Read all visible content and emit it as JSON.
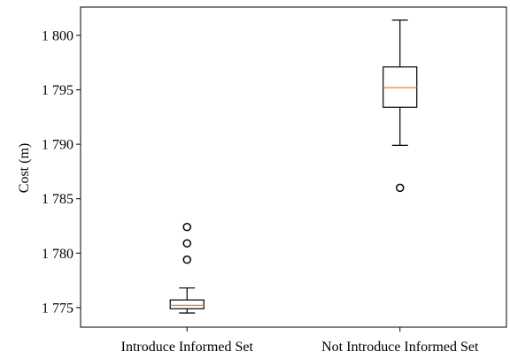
{
  "chart_data": {
    "type": "box",
    "title": "",
    "xlabel": "",
    "ylabel": "Cost  (m)",
    "ylim": [
      1773.2,
      1802.6
    ],
    "yticks": [
      1775,
      1780,
      1785,
      1790,
      1795,
      1800
    ],
    "ytick_labels": [
      "1 775",
      "1 780",
      "1 785",
      "1 790",
      "1 795",
      "1 800"
    ],
    "categories": [
      "Introduce Informed Set",
      "Not Introduce Informed Set"
    ],
    "boxes": [
      {
        "whisker_low": 1774.5,
        "q1": 1774.9,
        "median": 1775.2,
        "q3": 1775.7,
        "whisker_high": 1776.8,
        "outliers": [
          1779.4,
          1780.9,
          1782.4
        ]
      },
      {
        "whisker_low": 1789.9,
        "q1": 1793.4,
        "median": 1795.2,
        "q3": 1797.1,
        "whisker_high": 1801.4,
        "outliers": [
          1786.0
        ]
      }
    ],
    "colors": {
      "box": "#000000",
      "median": "#ff7f0e"
    },
    "grid": false
  }
}
